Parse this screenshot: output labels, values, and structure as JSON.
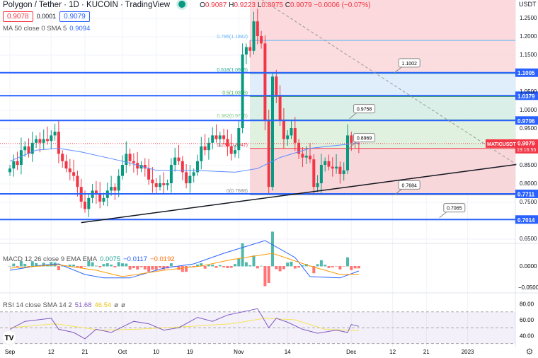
{
  "header": {
    "title": "Polygon / Tether · 1D · KUCOIN · TradingView",
    "ohlc": {
      "o_label": "O",
      "o": "0.9087",
      "h_label": "H",
      "h": "0.9223",
      "l_label": "L",
      "l": "0.8975",
      "c_label": "C",
      "c": "0.9079",
      "change": "−0.0006 (−0.07%)"
    },
    "bid": "0.9078",
    "spread": "0.0001",
    "ask": "0.9079",
    "ma": {
      "label": "MA 50 close 0 SMA 5",
      "value": "0.9094"
    }
  },
  "currency": "USDT",
  "colors": {
    "up": "#089981",
    "down": "#f23645",
    "level_line": "#2962ff",
    "ma": "#5b8cff",
    "macd": "#2962ff",
    "signal": "#ff9800",
    "rsi": "#7e57c2",
    "rsi_ma": "#f7e35a"
  },
  "chart_data": {
    "type": "candlestick",
    "symbol_label": "MATICUSDT",
    "last_price": "0.9079",
    "countdown": "19:16:55",
    "price_ticks": [
      "1.2500",
      "1.2000",
      "1.1500",
      "1.0500",
      "1.0000",
      "0.9500",
      "0.8500",
      "0.8000",
      "0.7500",
      "0.6500"
    ],
    "ylim": [
      0.645,
      1.3
    ],
    "x_ticks": [
      {
        "label": "Sep",
        "date": "2022-09-01"
      },
      {
        "label": "12",
        "date": "2022-09-12"
      },
      {
        "label": "21",
        "date": "2022-09-21"
      },
      {
        "label": "Oct",
        "date": "2022-10-01"
      },
      {
        "label": "10",
        "date": "2022-10-10"
      },
      {
        "label": "19",
        "date": "2022-10-19"
      },
      {
        "label": "Nov",
        "date": "2022-11-01"
      },
      {
        "label": "14",
        "date": "2022-11-14"
      },
      {
        "label": "Dec",
        "date": "2022-12-01"
      },
      {
        "label": "12",
        "date": "2022-12-12"
      },
      {
        "label": "21",
        "date": "2022-12-21"
      },
      {
        "label": "2023",
        "date": "2023-01-01"
      }
    ],
    "start_date": "2022-09-01",
    "closes": [
      0.84,
      0.86,
      0.85,
      0.89,
      0.9,
      0.88,
      0.91,
      0.92,
      0.91,
      0.92,
      0.915,
      0.93,
      0.94,
      0.88,
      0.86,
      0.84,
      0.83,
      0.82,
      0.79,
      0.75,
      0.73,
      0.76,
      0.78,
      0.77,
      0.75,
      0.76,
      0.78,
      0.79,
      0.78,
      0.82,
      0.85,
      0.88,
      0.86,
      0.855,
      0.84,
      0.85,
      0.84,
      0.81,
      0.8,
      0.79,
      0.8,
      0.795,
      0.8,
      0.85,
      0.87,
      0.86,
      0.83,
      0.8,
      0.82,
      0.83,
      0.86,
      0.9,
      0.89,
      0.91,
      0.93,
      0.92,
      0.93,
      0.92,
      0.9,
      0.88,
      0.89,
      0.95,
      1.15,
      1.17,
      1.16,
      1.24,
      1.2,
      1.18,
      0.97,
      0.79,
      1.09,
      1.04,
      0.97,
      0.92,
      0.93,
      0.95,
      0.91,
      0.88,
      0.87,
      0.875,
      0.865,
      0.79,
      0.8,
      0.85,
      0.86,
      0.845,
      0.84,
      0.845,
      0.825,
      0.835,
      0.93,
      0.91,
      0.908,
      0.9079
    ],
    "ma50": [
      [
        "2022-09-01",
        0.86
      ],
      [
        "2022-09-08",
        0.89
      ],
      [
        "2022-09-14",
        0.895
      ],
      [
        "2022-09-20",
        0.885
      ],
      [
        "2022-10-01",
        0.86
      ],
      [
        "2022-10-10",
        0.835
      ],
      [
        "2022-10-20",
        0.835
      ],
      [
        "2022-10-31",
        0.83
      ],
      [
        "2022-11-06",
        0.84
      ],
      [
        "2022-11-12",
        0.87
      ],
      [
        "2022-11-20",
        0.895
      ],
      [
        "2022-12-03",
        0.9094
      ]
    ],
    "horizontal_levels": [
      "1.1005",
      "1.0379",
      "0.9706",
      "0.7711",
      "0.7014"
    ],
    "fib_levels": [
      {
        "ratio": "0",
        "price": 0.7688,
        "label": "0(0.7688)",
        "fill": "#f8d7da"
      },
      {
        "ratio": "0.236",
        "price": 0.8947,
        "label": "0.236(0.8947)",
        "fill": "#eef7ec"
      },
      {
        "ratio": "0.382",
        "price": 0.9726,
        "label": "0.382(0.9726)",
        "fill": "#ddf0db"
      },
      {
        "ratio": "0.5",
        "price": 1.0356,
        "label": "0.5(1.0356)",
        "fill": "#d6ede6"
      },
      {
        "ratio": "0.618",
        "price": 1.0985,
        "label": "0.618(1.0985)",
        "fill": "#dcecfa"
      },
      {
        "ratio": "0.786",
        "price": 1.1882,
        "label": "0.786(1.1882)",
        "fill": "#fbd9dc"
      }
    ],
    "callouts": [
      {
        "text": "1.1002",
        "date": "2022-12-14",
        "price": 1.1002
      },
      {
        "text": "0.9758",
        "date": "2022-12-02",
        "price": 0.9758
      },
      {
        "text": "0.8969",
        "date": "2022-12-02",
        "price": 0.8969
      },
      {
        "text": "0.7684",
        "date": "2022-12-14",
        "price": 0.7684
      },
      {
        "text": "0.7065",
        "date": "2022-12-26",
        "price": 0.7065
      }
    ],
    "trendline": [
      [
        "2022-09-20",
        0.693
      ],
      [
        "2023-01-14",
        0.851
      ]
    ],
    "dashed_line": [
      [
        "2022-11-07",
        1.3
      ],
      [
        "2023-01-14",
        0.851
      ]
    ],
    "macd": {
      "label": "MACD 12 26 close 9 EMA EMA",
      "hist": "0.0075",
      "macd": "−0.0117",
      "signal": "−0.0192",
      "ticks": [
        "0.0000",
        "−0.0500"
      ],
      "macd_line": [
        [
          "2022-09-01",
          -0.01
        ],
        [
          "2022-09-08",
          0.0
        ],
        [
          "2022-09-14",
          0.005
        ],
        [
          "2022-09-21",
          -0.02
        ],
        [
          "2022-09-26",
          -0.028
        ],
        [
          "2022-10-03",
          -0.028
        ],
        [
          "2022-10-12",
          -0.005
        ],
        [
          "2022-10-20",
          0.005
        ],
        [
          "2022-10-28",
          0.03
        ],
        [
          "2022-11-08",
          0.06
        ],
        [
          "2022-11-16",
          0.02
        ],
        [
          "2022-11-20",
          -0.025
        ],
        [
          "2022-11-28",
          -0.028
        ],
        [
          "2022-12-03",
          -0.0117
        ]
      ],
      "signal_line": [
        [
          "2022-09-01",
          -0.005
        ],
        [
          "2022-09-14",
          0.003
        ],
        [
          "2022-09-24",
          -0.01
        ],
        [
          "2022-10-01",
          -0.025
        ],
        [
          "2022-10-12",
          -0.01
        ],
        [
          "2022-10-22",
          0.0
        ],
        [
          "2022-10-30",
          0.015
        ],
        [
          "2022-11-10",
          0.03
        ],
        [
          "2022-11-20",
          0.0
        ],
        [
          "2022-11-28",
          -0.02
        ],
        [
          "2022-12-03",
          -0.0192
        ]
      ]
    },
    "rsi": {
      "label": "RSI 14 close SMA 14 2",
      "value": "51.68",
      "ma": "46.54",
      "extra1": "ø",
      "extra2": "ø",
      "ticks": [
        "80.00",
        "60.00",
        "40.00"
      ],
      "band": [
        30,
        70
      ],
      "rsi_line": [
        [
          "2022-09-01",
          48
        ],
        [
          "2022-09-05",
          58
        ],
        [
          "2022-09-12",
          62
        ],
        [
          "2022-09-14",
          48
        ],
        [
          "2022-09-18",
          44
        ],
        [
          "2022-09-21",
          36
        ],
        [
          "2022-09-24",
          48
        ],
        [
          "2022-09-28",
          44
        ],
        [
          "2022-10-04",
          58
        ],
        [
          "2022-10-08",
          55
        ],
        [
          "2022-10-12",
          47
        ],
        [
          "2022-10-16",
          50
        ],
        [
          "2022-10-21",
          63
        ],
        [
          "2022-10-25",
          58
        ],
        [
          "2022-10-29",
          66
        ],
        [
          "2022-11-06",
          74
        ],
        [
          "2022-11-09",
          50
        ],
        [
          "2022-11-11",
          62
        ],
        [
          "2022-11-14",
          57
        ],
        [
          "2022-11-18",
          48
        ],
        [
          "2022-11-22",
          43
        ],
        [
          "2022-11-27",
          47
        ],
        [
          "2022-11-30",
          44
        ],
        [
          "2022-12-01",
          54
        ],
        [
          "2022-12-03",
          51.68
        ]
      ],
      "ma_line": [
        [
          "2022-09-01",
          50
        ],
        [
          "2022-09-13",
          55
        ],
        [
          "2022-09-25",
          47
        ],
        [
          "2022-10-05",
          48
        ],
        [
          "2022-10-20",
          52
        ],
        [
          "2022-10-30",
          55
        ],
        [
          "2022-11-08",
          62
        ],
        [
          "2022-11-16",
          60
        ],
        [
          "2022-11-24",
          48
        ],
        [
          "2022-12-03",
          46.54
        ]
      ]
    }
  }
}
